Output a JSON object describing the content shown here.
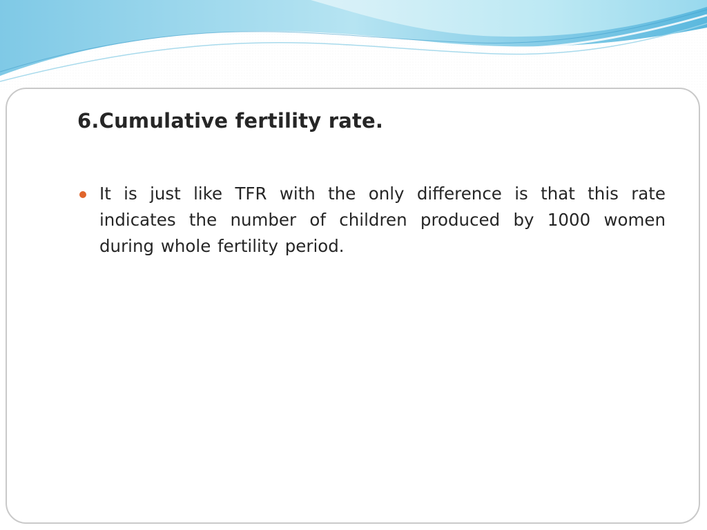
{
  "slide": {
    "title": "6.Cumulative fertility rate.",
    "bullets": [
      {
        "text": "It is just like TFR with the only difference is that this rate indicates the number of children produced by 1000 women during whole fertility period."
      }
    ]
  },
  "colors": {
    "bullet": "#e0652c",
    "text": "#262626",
    "panel_border": "#c9c9c9",
    "wave_light": "#c3ecf5",
    "wave_dark": "#4aaed6"
  }
}
